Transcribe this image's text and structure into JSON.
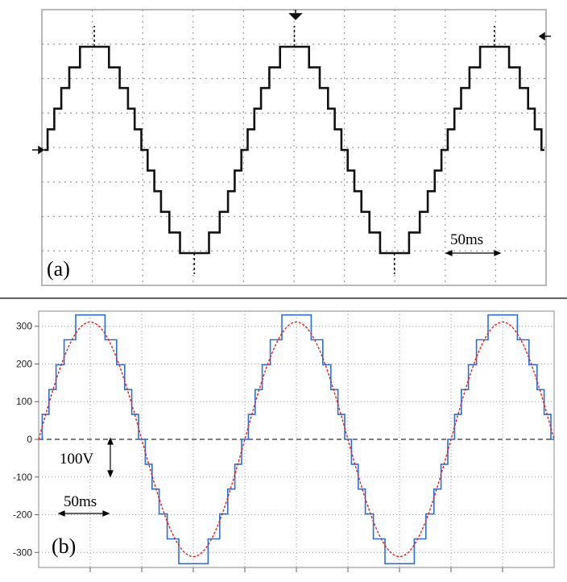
{
  "chart_data": [
    {
      "panel": "(a)",
      "type": "line",
      "waveform": "staircase",
      "cycles": 2.5,
      "levels_per_quarter_cycle": 5,
      "peak": 330,
      "period_ms": 200,
      "annotations": {
        "time_scale": "50ms"
      },
      "colors": {
        "trace": "#111111",
        "grid": "#9a9a9a"
      },
      "grid": true
    },
    {
      "panel": "(b)",
      "type": "line",
      "ylim": [
        -340,
        340
      ],
      "yticks": [
        300,
        200,
        100,
        0,
        -100,
        -200,
        -300
      ],
      "ytick_labels": [
        "300",
        "200",
        "100",
        "0",
        "-100",
        "-200",
        "-300"
      ],
      "annotations": {
        "voltage_scale": "100V",
        "time_scale": "50ms"
      },
      "series": [
        {
          "style": "staircase",
          "color": "#2b6fd6",
          "peak": 330,
          "levels": 5
        },
        {
          "style": "sine",
          "color": "#e8201a",
          "amplitude": 311
        }
      ],
      "period_ms": 200,
      "cycles": 2.5,
      "zero_line": true,
      "grid": true
    }
  ]
}
